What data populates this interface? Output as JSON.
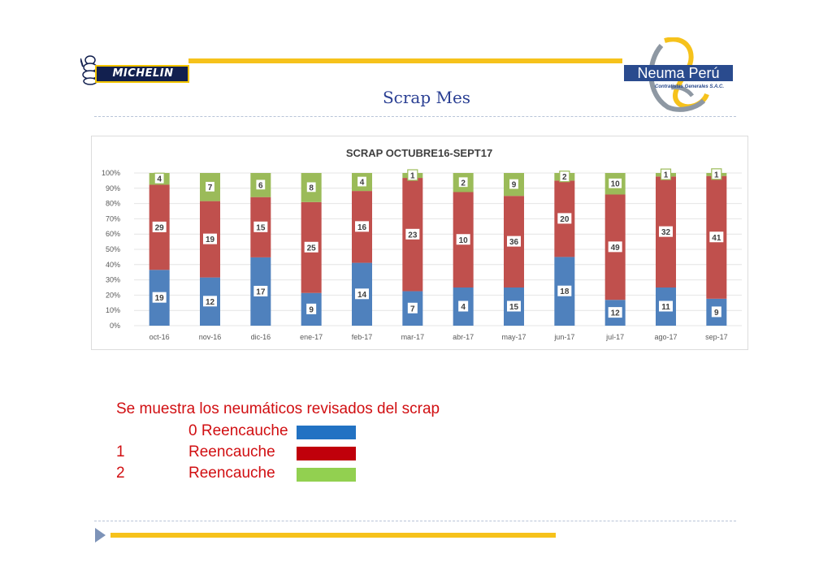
{
  "header": {
    "logo_left_text": "MICHELIN",
    "logo_right_text": "Neuma Perú",
    "logo_right_subtext": "Contratistas Generales S.A.C.",
    "page_title": "Scrap Mes"
  },
  "colors": {
    "reencauche_0": "#4f81bd",
    "reencauche_1": "#c0504d",
    "reencauche_2": "#9bbb59",
    "accent_bar": "#f6c21b",
    "caption_text": "#d10f12"
  },
  "chart_data": {
    "type": "bar",
    "stacked": "percent",
    "title": "SCRAP OCTUBRE16-SEPT17",
    "categories": [
      "oct-16",
      "nov-16",
      "dic-16",
      "ene-17",
      "feb-17",
      "mar-17",
      "abr-17",
      "may-17",
      "jun-17",
      "jul-17",
      "ago-17",
      "sep-17"
    ],
    "series": [
      {
        "name": "0 Reencauche",
        "values": [
          19,
          12,
          17,
          9,
          14,
          7,
          4,
          15,
          18,
          12,
          11,
          9
        ]
      },
      {
        "name": "1 Reencauche",
        "values": [
          29,
          19,
          15,
          25,
          16,
          23,
          10,
          36,
          20,
          49,
          32,
          41
        ]
      },
      {
        "name": "2 Reencauche",
        "values": [
          4,
          7,
          6,
          8,
          4,
          1,
          2,
          9,
          2,
          10,
          1,
          1
        ]
      }
    ],
    "yticks": [
      "0%",
      "10%",
      "20%",
      "30%",
      "40%",
      "50%",
      "60%",
      "70%",
      "80%",
      "90%",
      "100%"
    ],
    "ylim": [
      0,
      100
    ],
    "grid": true,
    "legend": "none"
  },
  "caption": {
    "text": "Se muestra los neumáticos revisados del scrap",
    "legend": [
      {
        "num": "",
        "label": "0 Reencauche"
      },
      {
        "num": "1",
        "label": "Reencauche"
      },
      {
        "num": "2",
        "label": "Reencauche"
      }
    ]
  }
}
